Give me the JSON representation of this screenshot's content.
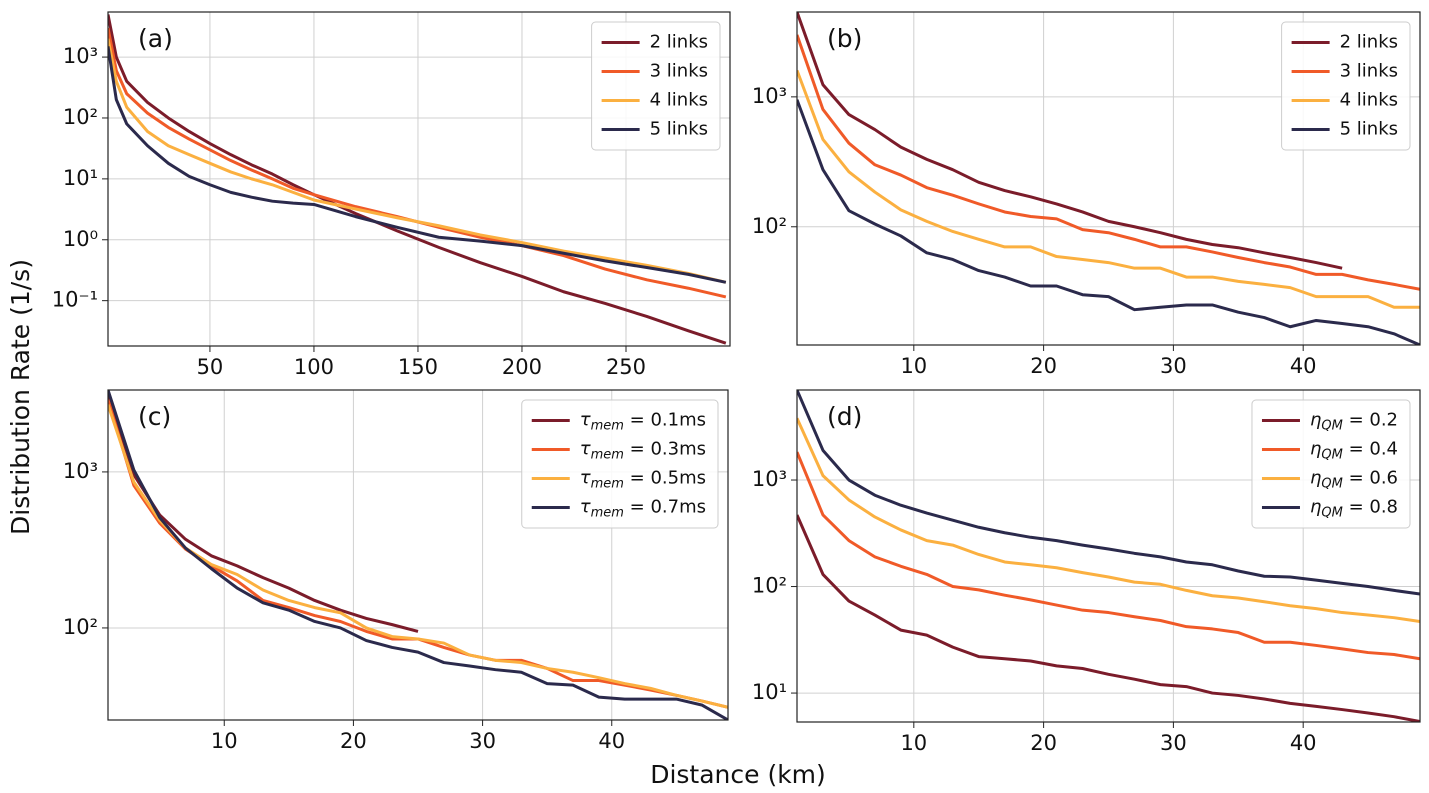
{
  "xlabel": "Distance (km)",
  "ylabel": "Distribution Rate (1/s)",
  "chart_data": [
    {
      "type": "line",
      "label": "(a)",
      "log_y": true,
      "grid": true,
      "legend": "upper right",
      "xlim": [
        1,
        300
      ],
      "ylim": [
        0.018,
        5500
      ],
      "xticks": [
        50,
        100,
        150,
        200,
        250
      ],
      "yticks": [
        {
          "value": 0.1,
          "label": "10⁻¹"
        },
        {
          "value": 1,
          "label": "10⁰"
        },
        {
          "value": 10,
          "label": "10¹"
        },
        {
          "value": 100,
          "label": "10²"
        },
        {
          "value": 1000,
          "label": "10³"
        }
      ],
      "x": [
        1,
        5,
        10,
        20,
        30,
        40,
        50,
        60,
        70,
        80,
        90,
        100,
        120,
        140,
        160,
        180,
        200,
        220,
        240,
        260,
        280,
        298
      ],
      "series": [
        {
          "name": "2 links",
          "color": "#7b1c2a",
          "values": [
            5000,
            1000,
            400,
            180,
            100,
            60,
            38,
            25,
            17,
            12,
            8,
            5.5,
            2.7,
            1.4,
            0.75,
            0.42,
            0.25,
            0.14,
            0.09,
            0.055,
            0.032,
            0.02
          ]
        },
        {
          "name": "3 links",
          "color": "#f05a28",
          "values": [
            3000,
            600,
            250,
            120,
            70,
            45,
            30,
            20,
            14,
            10,
            7,
            5.5,
            3.5,
            2.4,
            1.6,
            1.1,
            0.8,
            0.55,
            0.33,
            0.22,
            0.16,
            0.115
          ]
        },
        {
          "name": "4 links",
          "color": "#fbb040",
          "values": [
            2000,
            400,
            150,
            60,
            35,
            25,
            18,
            13,
            10,
            8,
            6,
            4.5,
            3.2,
            2.3,
            1.7,
            1.2,
            0.9,
            0.65,
            0.5,
            0.38,
            0.28,
            0.2
          ]
        },
        {
          "name": "5 links",
          "color": "#2b2a4c",
          "values": [
            1500,
            200,
            80,
            35,
            18,
            11,
            8,
            6,
            5,
            4.3,
            4,
            3.8,
            2.4,
            1.6,
            1.1,
            0.95,
            0.8,
            0.6,
            0.45,
            0.35,
            0.27,
            0.2
          ]
        }
      ]
    },
    {
      "type": "line",
      "label": "(b)",
      "log_y": true,
      "grid": true,
      "legend": "upper right",
      "xlim": [
        1,
        49
      ],
      "ylim": [
        12.3,
        4500
      ],
      "xticks": [
        10,
        20,
        30,
        40
      ],
      "yticks": [
        {
          "value": 100,
          "label": "10²"
        },
        {
          "value": 1000,
          "label": "10³"
        }
      ],
      "x": [
        1,
        3,
        5,
        7,
        9,
        11,
        13,
        15,
        17,
        19,
        21,
        23,
        25,
        27,
        29,
        31,
        33,
        35,
        37,
        39,
        41,
        43,
        45,
        47,
        49
      ],
      "series": [
        {
          "name": "2 links",
          "color": "#7b1c2a",
          "values": [
            4500,
            1240,
            730,
            560,
            410,
            330,
            275,
            220,
            190,
            170,
            150,
            130,
            110,
            100,
            90,
            80,
            73,
            69,
            63,
            58,
            53,
            48,
            null,
            null,
            null
          ]
        },
        {
          "name": "3 links",
          "color": "#f05a28",
          "values": [
            3000,
            800,
            440,
            300,
            250,
            200,
            175,
            150,
            130,
            120,
            115,
            95,
            90,
            80,
            70,
            70,
            64,
            58,
            53,
            49,
            43,
            43,
            39,
            36,
            33
          ]
        },
        {
          "name": "4 links",
          "color": "#fbb040",
          "values": [
            1600,
            470,
            265,
            185,
            135,
            110,
            92,
            80,
            70,
            70,
            59,
            56,
            53,
            48,
            48,
            41,
            41,
            38,
            36,
            34,
            29,
            29,
            29,
            24,
            24
          ]
        },
        {
          "name": "5 links",
          "color": "#2b2a4c",
          "values": [
            950,
            275,
            133,
            105,
            85,
            63,
            56,
            46,
            41,
            35,
            35,
            30,
            29,
            23,
            24,
            25,
            25,
            22,
            20,
            17,
            19,
            18,
            17,
            15,
            12.3
          ]
        }
      ]
    },
    {
      "type": "line",
      "label": "(c)",
      "log_y": true,
      "grid": true,
      "legend": "upper right",
      "xlim": [
        1,
        49
      ],
      "ylim": [
        25.7,
        3350
      ],
      "xticks": [
        10,
        20,
        30,
        40
      ],
      "yticks": [
        {
          "value": 100,
          "label": "10²"
        },
        {
          "value": 1000,
          "label": "10³"
        }
      ],
      "x": [
        1,
        3,
        5,
        7,
        9,
        11,
        13,
        15,
        17,
        19,
        21,
        23,
        25,
        27,
        29,
        31,
        33,
        35,
        37,
        39,
        41,
        43,
        45,
        47,
        49
      ],
      "series": [
        {
          "name": "τ_mem = 0.1ms",
          "color": "#7b1c2a",
          "values": [
            3100,
            960,
            530,
            370,
            290,
            250,
            210,
            180,
            150,
            130,
            115,
            105,
            95,
            null,
            null,
            null,
            null,
            null,
            null,
            null,
            null,
            null,
            null,
            null,
            null
          ]
        },
        {
          "name": "τ_mem = 0.3ms",
          "color": "#f05a28",
          "values": [
            2900,
            820,
            470,
            320,
            250,
            200,
            150,
            135,
            120,
            110,
            95,
            85,
            85,
            75,
            67,
            62,
            62,
            55,
            46,
            46,
            43,
            40,
            37,
            34,
            31
          ]
        },
        {
          "name": "τ_mem = 0.5ms",
          "color": "#fbb040",
          "values": [
            2700,
            860,
            490,
            325,
            255,
            220,
            175,
            150,
            135,
            125,
            100,
            88,
            85,
            80,
            67,
            62,
            60,
            55,
            52,
            48,
            44,
            41,
            37,
            34,
            31
          ]
        },
        {
          "name": "τ_mem = 0.7ms",
          "color": "#2b2a4c",
          "values": [
            3350,
            1030,
            510,
            325,
            240,
            180,
            145,
            130,
            110,
            100,
            83,
            75,
            70,
            60,
            57,
            54,
            52,
            44,
            43,
            36,
            35,
            35,
            35,
            32,
            25.7
          ]
        }
      ]
    },
    {
      "type": "line",
      "label": "(d)",
      "log_y": true,
      "grid": true,
      "legend": "upper right",
      "xlim": [
        1,
        49
      ],
      "ylim": [
        5.35,
        7000
      ],
      "xticks": [
        10,
        20,
        30,
        40
      ],
      "yticks": [
        {
          "value": 10,
          "label": "10¹"
        },
        {
          "value": 100,
          "label": "10²"
        },
        {
          "value": 1000,
          "label": "10³"
        }
      ],
      "x": [
        1,
        3,
        5,
        7,
        9,
        11,
        13,
        15,
        17,
        19,
        21,
        23,
        25,
        27,
        29,
        31,
        33,
        35,
        37,
        39,
        41,
        43,
        45,
        47,
        49
      ],
      "series": [
        {
          "name": "η_QM = 0.2",
          "color": "#7b1c2a",
          "values": [
            470,
            130,
            73,
            54,
            39,
            35,
            27,
            22,
            21,
            20,
            18,
            17,
            15,
            13.5,
            12,
            11.5,
            10,
            9.5,
            8.8,
            8,
            7.5,
            7,
            6.5,
            6,
            5.4
          ]
        },
        {
          "name": "η_QM = 0.4",
          "color": "#f05a28",
          "values": [
            1830,
            470,
            270,
            190,
            155,
            130,
            100,
            93,
            83,
            75,
            67,
            60,
            57,
            52,
            48,
            42,
            40,
            37,
            30,
            30,
            28,
            26,
            24,
            23,
            21
          ]
        },
        {
          "name": "η_QM = 0.6",
          "color": "#fbb040",
          "values": [
            3800,
            1100,
            650,
            450,
            340,
            270,
            245,
            200,
            170,
            160,
            150,
            135,
            123,
            110,
            105,
            92,
            82,
            78,
            72,
            66,
            62,
            57,
            54,
            51,
            47
          ]
        },
        {
          "name": "η_QM = 0.8",
          "color": "#2b2a4c",
          "values": [
            7000,
            1900,
            1000,
            720,
            580,
            490,
            420,
            360,
            320,
            290,
            270,
            245,
            225,
            205,
            190,
            170,
            160,
            140,
            125,
            123,
            115,
            107,
            100,
            92,
            85
          ]
        }
      ]
    }
  ]
}
